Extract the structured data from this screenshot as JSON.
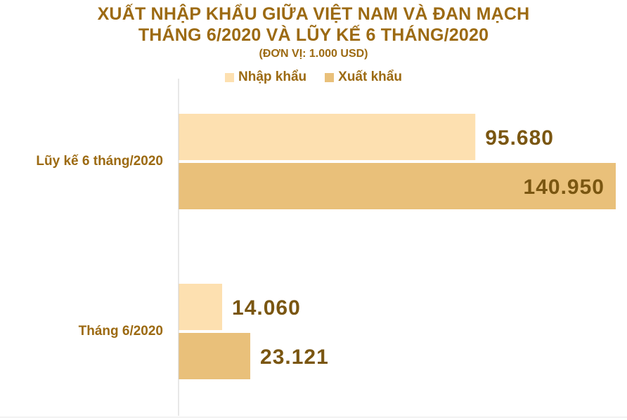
{
  "chart_data": {
    "type": "bar",
    "orientation": "horizontal",
    "title_line1": "XUẤT NHẬP KHẨU GIỮA VIỆT NAM VÀ ĐAN MẠCH",
    "title_line2": "THÁNG 6/2020 VÀ LŨY KẾ 6 THÁNG/2020",
    "subtitle": "(ĐƠN VỊ: 1.000 USD)",
    "legend_placement": "top",
    "categories": [
      "Lũy kế 6 tháng/2020",
      "Tháng 6/2020"
    ],
    "series": [
      {
        "name": "Nhập khẩu",
        "color": "#fde0b0",
        "values": [
          95680,
          14060
        ],
        "labels": [
          "95.680",
          "14.060"
        ]
      },
      {
        "name": "Xuất khẩu",
        "color": "#e9c07a",
        "values": [
          140950,
          23121
        ],
        "labels": [
          "140.950",
          "23.121"
        ]
      }
    ],
    "xlim": [
      0,
      140950
    ],
    "grid": false
  }
}
